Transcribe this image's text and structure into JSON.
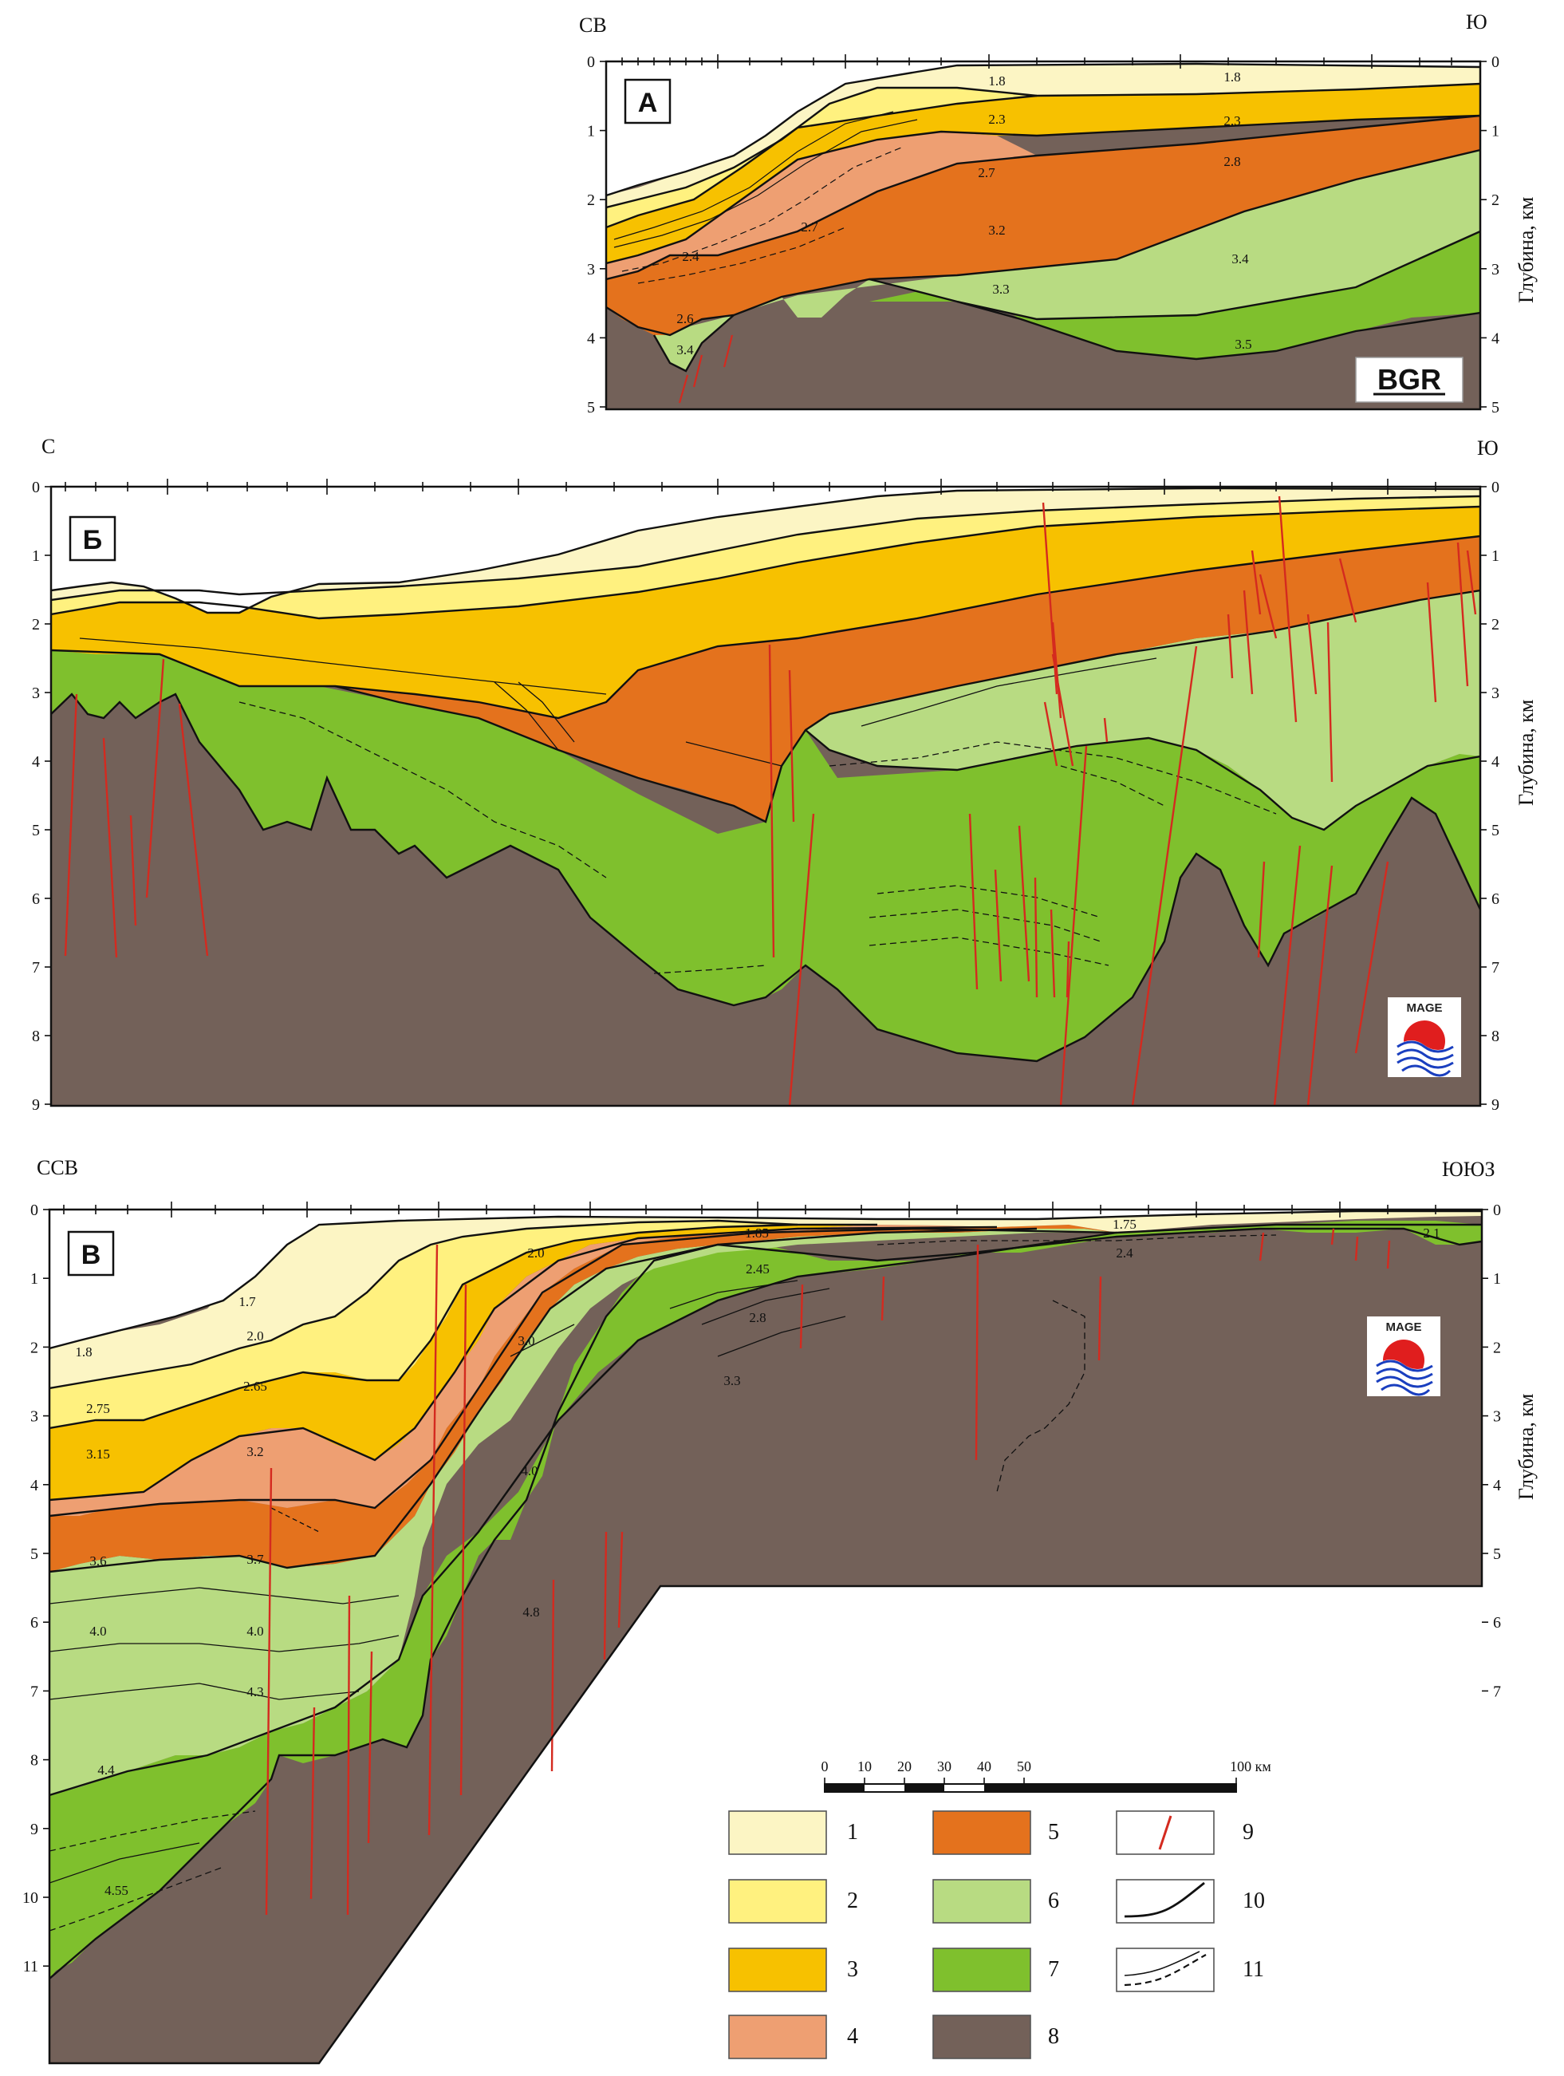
{
  "colors": {
    "unit1": "#fcf5c4",
    "unit2": "#fff17f",
    "unit3": "#f7c100",
    "unit4": "#ee9f72",
    "unit5": "#e4721d",
    "unit6": "#b8db82",
    "unit7": "#7fc02d",
    "unit8": "#736159",
    "fault": "#d42a1f",
    "boundary": "#111111"
  },
  "depth_axis_label": "Глубина, км",
  "panels": {
    "A": {
      "letter": "А",
      "left_direction": "СВ",
      "right_direction": "Ю",
      "depth_ticks": [
        "0",
        "1",
        "2",
        "3",
        "4",
        "5"
      ],
      "logo": "BGR",
      "velocities": [
        "1.8",
        "1.8",
        "2.3",
        "2.3",
        "2.7",
        "2.8",
        "2.7",
        "3.2",
        "3.4",
        "2.4",
        "3.3",
        "2.6",
        "3.4",
        "3.5"
      ]
    },
    "B": {
      "letter": "Б",
      "left_direction": "С",
      "right_direction": "Ю",
      "depth_ticks": [
        "0",
        "1",
        "2",
        "3",
        "4",
        "5",
        "6",
        "7",
        "8",
        "9"
      ],
      "logo": "MAGE"
    },
    "C": {
      "letter": "В",
      "left_direction": "ССВ",
      "right_direction": "ЮЮЗ",
      "depth_ticks": [
        "0",
        "1",
        "2",
        "3",
        "4",
        "5",
        "6",
        "7",
        "8",
        "9",
        "10",
        "11"
      ],
      "right_depth_ticks": [
        "0",
        "1",
        "2",
        "3",
        "4",
        "5",
        "6",
        "7"
      ],
      "logo": "MAGE",
      "velocities": [
        "1.85",
        "1.75",
        "2.0",
        "1.7",
        "2.45",
        "2.4",
        "2.1",
        "1.8",
        "2.0",
        "2.8",
        "3.0",
        "2.65",
        "2.75",
        "3.3",
        "3.15",
        "3.2",
        "4.0",
        "3.6",
        "3.7",
        "4.8",
        "4.0",
        "4.0",
        "4.3",
        "4.4",
        "4.55"
      ]
    }
  },
  "scale_bar": {
    "ticks": [
      "0",
      "10",
      "20",
      "30",
      "40",
      "50",
      "100 км"
    ]
  },
  "legend": [
    {
      "number": "1",
      "color_key": "unit1"
    },
    {
      "number": "2",
      "color_key": "unit2"
    },
    {
      "number": "3",
      "color_key": "unit3"
    },
    {
      "number": "4",
      "color_key": "unit4"
    },
    {
      "number": "5",
      "color_key": "unit5"
    },
    {
      "number": "6",
      "color_key": "unit6"
    },
    {
      "number": "7",
      "color_key": "unit7"
    },
    {
      "number": "8",
      "color_key": "unit8"
    },
    {
      "number": "9",
      "symbol": "fault-line"
    },
    {
      "number": "10",
      "symbol": "solid-boundary"
    },
    {
      "number": "11",
      "symbol": "dashed-boundary"
    }
  ]
}
